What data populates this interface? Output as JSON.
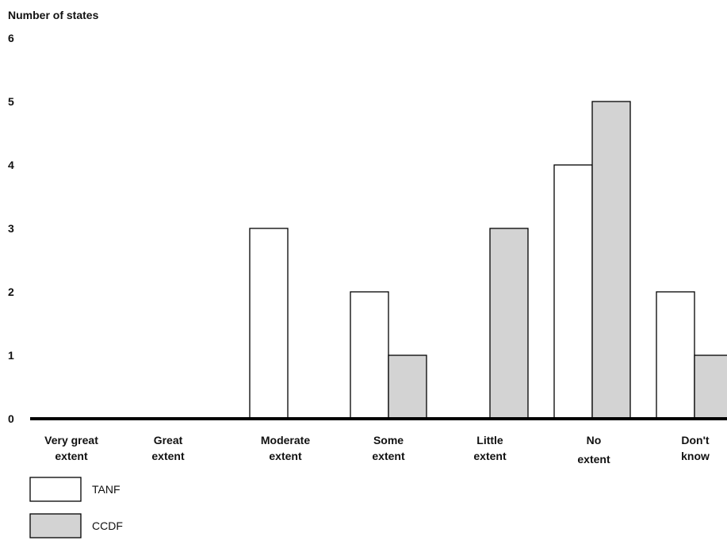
{
  "chart_data": {
    "type": "bar",
    "ylabel": "Number of states",
    "xlabel": "",
    "ylim": [
      0,
      6
    ],
    "yticks": [
      "0",
      "1",
      "2",
      "3",
      "4",
      "5",
      "6"
    ],
    "grid": false,
    "legend_position": "bottom-left",
    "categories": [
      [
        "Very great",
        "extent"
      ],
      [
        "Great",
        "extent"
      ],
      [
        "Moderate",
        "extent"
      ],
      [
        "Some",
        "extent"
      ],
      [
        "Little",
        "extent"
      ],
      [
        "No",
        "extent"
      ],
      [
        "Don't",
        "know"
      ]
    ],
    "series": [
      {
        "name": "TANF",
        "color": "#ffffff",
        "values": [
          0,
          0,
          3,
          2,
          0,
          4,
          2
        ]
      },
      {
        "name": "CCDF",
        "color": "#d3d3d3",
        "values": [
          0,
          0,
          0,
          1,
          3,
          5,
          1
        ]
      }
    ]
  }
}
